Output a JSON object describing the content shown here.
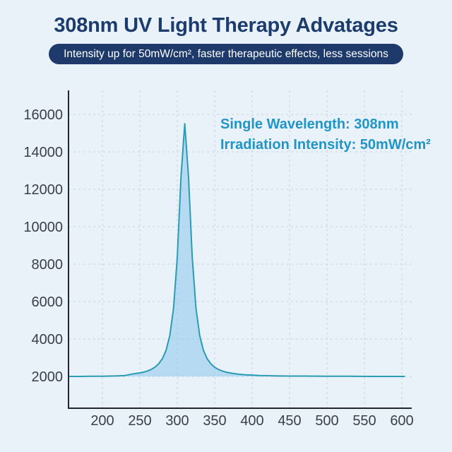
{
  "header": {
    "title": "308nm UV Light Therapy Advatages",
    "subtitle": "Intensity up for 50mW/cm², faster therapeutic effects, less sessions"
  },
  "annotation": {
    "line1": "Single Wavelength:  308nm",
    "line2": "Irradiation Intensity: 50mW/cm²"
  },
  "colors": {
    "background": "#e9f1f9",
    "title": "#1d3c6e",
    "banner_bg": "#1d3a6b",
    "banner_text": "#ffffff",
    "annotation": "#2095c8",
    "curve_stroke": "#2b9cb3",
    "curve_fill": "rgba(141,198,235,0.55)",
    "grid": "#c7d3e2",
    "axis": "#22272e",
    "tick_label": "#3a4049"
  },
  "chart_data": {
    "type": "area",
    "title": "",
    "xlabel": "",
    "ylabel": "",
    "x_ticks": [
      200,
      250,
      300,
      350,
      400,
      450,
      500,
      550,
      600
    ],
    "y_ticks": [
      2000,
      4000,
      6000,
      8000,
      10000,
      12000,
      14000,
      16000
    ],
    "xlim": [
      155,
      613
    ],
    "ylim": [
      300,
      17300
    ],
    "grid": "dashed both axes",
    "legend": "none",
    "baseline": 2000,
    "peak": {
      "wavelength_nm": 308,
      "intensity": 15500
    },
    "points": [
      [
        155,
        2000
      ],
      [
        170,
        2000
      ],
      [
        185,
        2010
      ],
      [
        200,
        2010
      ],
      [
        210,
        2020
      ],
      [
        220,
        2030
      ],
      [
        230,
        2050
      ],
      [
        240,
        2130
      ],
      [
        245,
        2160
      ],
      [
        250,
        2190
      ],
      [
        255,
        2230
      ],
      [
        260,
        2290
      ],
      [
        265,
        2370
      ],
      [
        270,
        2490
      ],
      [
        275,
        2670
      ],
      [
        280,
        2940
      ],
      [
        285,
        3390
      ],
      [
        290,
        4180
      ],
      [
        295,
        5630
      ],
      [
        300,
        8360
      ],
      [
        305,
        12680
      ],
      [
        310,
        15500
      ],
      [
        315,
        12680
      ],
      [
        320,
        8360
      ],
      [
        325,
        5630
      ],
      [
        330,
        4180
      ],
      [
        335,
        3390
      ],
      [
        340,
        2940
      ],
      [
        345,
        2670
      ],
      [
        350,
        2490
      ],
      [
        355,
        2370
      ],
      [
        360,
        2290
      ],
      [
        365,
        2230
      ],
      [
        370,
        2190
      ],
      [
        380,
        2130
      ],
      [
        390,
        2090
      ],
      [
        400,
        2070
      ],
      [
        410,
        2050
      ],
      [
        430,
        2030
      ],
      [
        450,
        2020
      ],
      [
        470,
        2020
      ],
      [
        500,
        2010
      ],
      [
        530,
        2010
      ],
      [
        560,
        2000
      ],
      [
        600,
        2000
      ],
      [
        604,
        2000
      ]
    ]
  }
}
